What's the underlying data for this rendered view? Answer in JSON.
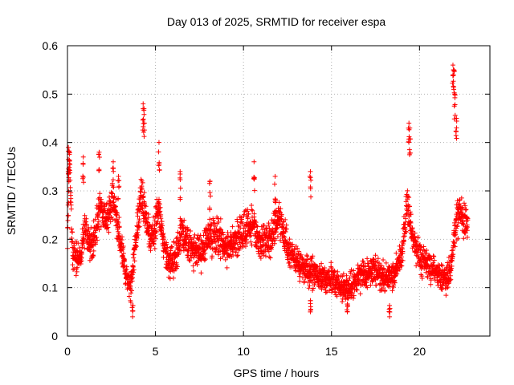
{
  "chart_data": {
    "type": "scatter",
    "title": "Day 013 of 2025, SRMTID for receiver espa",
    "xlabel": "GPS time / hours",
    "ylabel": "SRMTID / TECUs",
    "xlim": [
      0,
      24
    ],
    "ylim": [
      0,
      0.6
    ],
    "xticks": [
      0,
      5,
      10,
      15,
      20
    ],
    "xtick_labels": [
      "0",
      "5",
      "10",
      "15",
      "20"
    ],
    "yticks": [
      0,
      0.1,
      0.2,
      0.3,
      0.4,
      0.5,
      0.6
    ],
    "ytick_labels": [
      "0",
      "0.1",
      "0.2",
      "0.3",
      "0.4",
      "0.5",
      "0.6"
    ],
    "grid": true,
    "marker": "plus",
    "color": "#ff0000",
    "series": [
      {
        "name": "SRMTID",
        "trend": [
          {
            "x": 0.0,
            "y": 0.18
          },
          {
            "x": 0.1,
            "y": 0.36
          },
          {
            "x": 0.3,
            "y": 0.17
          },
          {
            "x": 0.7,
            "y": 0.16
          },
          {
            "x": 1.0,
            "y": 0.22
          },
          {
            "x": 1.4,
            "y": 0.18
          },
          {
            "x": 1.8,
            "y": 0.26
          },
          {
            "x": 2.2,
            "y": 0.24
          },
          {
            "x": 2.6,
            "y": 0.28
          },
          {
            "x": 3.0,
            "y": 0.2
          },
          {
            "x": 3.3,
            "y": 0.13
          },
          {
            "x": 3.6,
            "y": 0.1
          },
          {
            "x": 3.9,
            "y": 0.2
          },
          {
            "x": 4.2,
            "y": 0.3
          },
          {
            "x": 4.5,
            "y": 0.23
          },
          {
            "x": 4.8,
            "y": 0.2
          },
          {
            "x": 5.2,
            "y": 0.26
          },
          {
            "x": 5.6,
            "y": 0.16
          },
          {
            "x": 6.0,
            "y": 0.15
          },
          {
            "x": 6.5,
            "y": 0.22
          },
          {
            "x": 7.0,
            "y": 0.18
          },
          {
            "x": 7.5,
            "y": 0.17
          },
          {
            "x": 8.0,
            "y": 0.2
          },
          {
            "x": 8.5,
            "y": 0.21
          },
          {
            "x": 9.0,
            "y": 0.18
          },
          {
            "x": 9.5,
            "y": 0.2
          },
          {
            "x": 10.0,
            "y": 0.22
          },
          {
            "x": 10.5,
            "y": 0.23
          },
          {
            "x": 11.0,
            "y": 0.19
          },
          {
            "x": 11.5,
            "y": 0.2
          },
          {
            "x": 12.0,
            "y": 0.25
          },
          {
            "x": 12.5,
            "y": 0.18
          },
          {
            "x": 13.0,
            "y": 0.16
          },
          {
            "x": 13.5,
            "y": 0.14
          },
          {
            "x": 14.0,
            "y": 0.13
          },
          {
            "x": 14.5,
            "y": 0.12
          },
          {
            "x": 15.0,
            "y": 0.12
          },
          {
            "x": 15.5,
            "y": 0.1
          },
          {
            "x": 16.0,
            "y": 0.1
          },
          {
            "x": 16.5,
            "y": 0.12
          },
          {
            "x": 17.0,
            "y": 0.13
          },
          {
            "x": 17.5,
            "y": 0.14
          },
          {
            "x": 18.0,
            "y": 0.12
          },
          {
            "x": 18.5,
            "y": 0.12
          },
          {
            "x": 19.0,
            "y": 0.17
          },
          {
            "x": 19.3,
            "y": 0.28
          },
          {
            "x": 19.6,
            "y": 0.2
          },
          {
            "x": 20.0,
            "y": 0.16
          },
          {
            "x": 20.5,
            "y": 0.15
          },
          {
            "x": 21.0,
            "y": 0.13
          },
          {
            "x": 21.5,
            "y": 0.12
          },
          {
            "x": 21.8,
            "y": 0.14
          },
          {
            "x": 22.0,
            "y": 0.22
          },
          {
            "x": 22.3,
            "y": 0.26
          },
          {
            "x": 22.7,
            "y": 0.23
          }
        ],
        "spikes": [
          {
            "x": 0.05,
            "y": 0.39
          },
          {
            "x": 0.1,
            "y": 0.38
          },
          {
            "x": 0.9,
            "y": 0.37
          },
          {
            "x": 1.8,
            "y": 0.38
          },
          {
            "x": 2.6,
            "y": 0.36
          },
          {
            "x": 2.9,
            "y": 0.33
          },
          {
            "x": 4.3,
            "y": 0.48
          },
          {
            "x": 4.35,
            "y": 0.47
          },
          {
            "x": 5.2,
            "y": 0.4
          },
          {
            "x": 6.4,
            "y": 0.34
          },
          {
            "x": 8.1,
            "y": 0.32
          },
          {
            "x": 10.6,
            "y": 0.36
          },
          {
            "x": 11.8,
            "y": 0.33
          },
          {
            "x": 13.8,
            "y": 0.34
          },
          {
            "x": 19.4,
            "y": 0.44
          },
          {
            "x": 19.45,
            "y": 0.43
          },
          {
            "x": 21.9,
            "y": 0.56
          },
          {
            "x": 21.95,
            "y": 0.55
          },
          {
            "x": 22.0,
            "y": 0.5
          },
          {
            "x": 22.1,
            "y": 0.45
          },
          {
            "x": 3.7,
            "y": 0.04
          },
          {
            "x": 15.9,
            "y": 0.05
          },
          {
            "x": 18.3,
            "y": 0.04
          },
          {
            "x": 13.8,
            "y": 0.05
          }
        ],
        "sample_interval_hours": 0.008,
        "scatter_spread": 0.05,
        "x_end": 22.75
      }
    ]
  }
}
